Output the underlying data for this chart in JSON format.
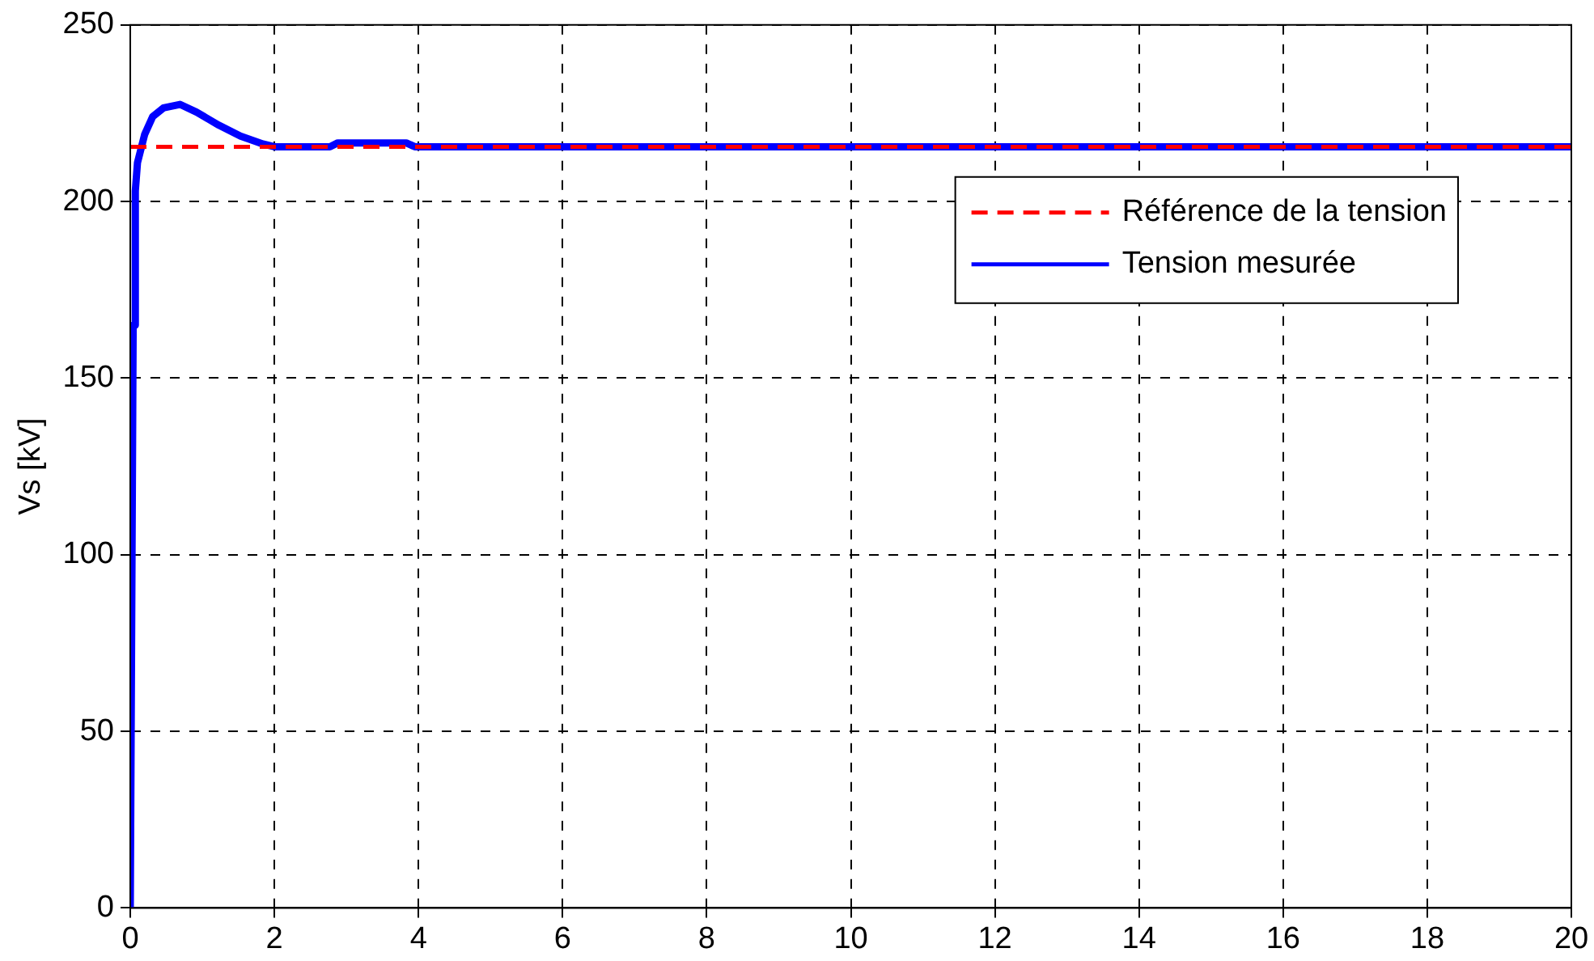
{
  "chart_data": {
    "type": "line",
    "ylabel": "Vs [kV]",
    "xlim": [
      0,
      20
    ],
    "ylim": [
      0,
      250
    ],
    "xticks": [
      0,
      2,
      4,
      6,
      8,
      10,
      12,
      14,
      16,
      18,
      20
    ],
    "yticks": [
      0,
      50,
      100,
      150,
      200,
      250
    ],
    "grid": true,
    "legend": "top right",
    "marker": "none",
    "series": [
      {
        "name": "Référence de la tension",
        "color": "#ff0000",
        "line_style": "dashed",
        "x": [
          0,
          20
        ],
        "values": [
          215.5,
          215.5
        ]
      },
      {
        "name": "Tension mesurée",
        "color": "#0000ff",
        "line_style": "solid",
        "x": [
          0,
          0.04,
          0.06,
          0.07,
          0.1,
          0.2,
          0.31,
          0.46,
          0.69,
          0.92,
          1.23,
          1.53,
          1.84,
          2,
          2.77,
          2.88,
          3.83,
          3.95,
          20
        ],
        "values": [
          0,
          165,
          165,
          203,
          211,
          219,
          224,
          226.5,
          227.5,
          225.3,
          221.6,
          218.5,
          216.3,
          215.5,
          215.5,
          216.6,
          216.6,
          215.5,
          215.5
        ]
      }
    ]
  }
}
